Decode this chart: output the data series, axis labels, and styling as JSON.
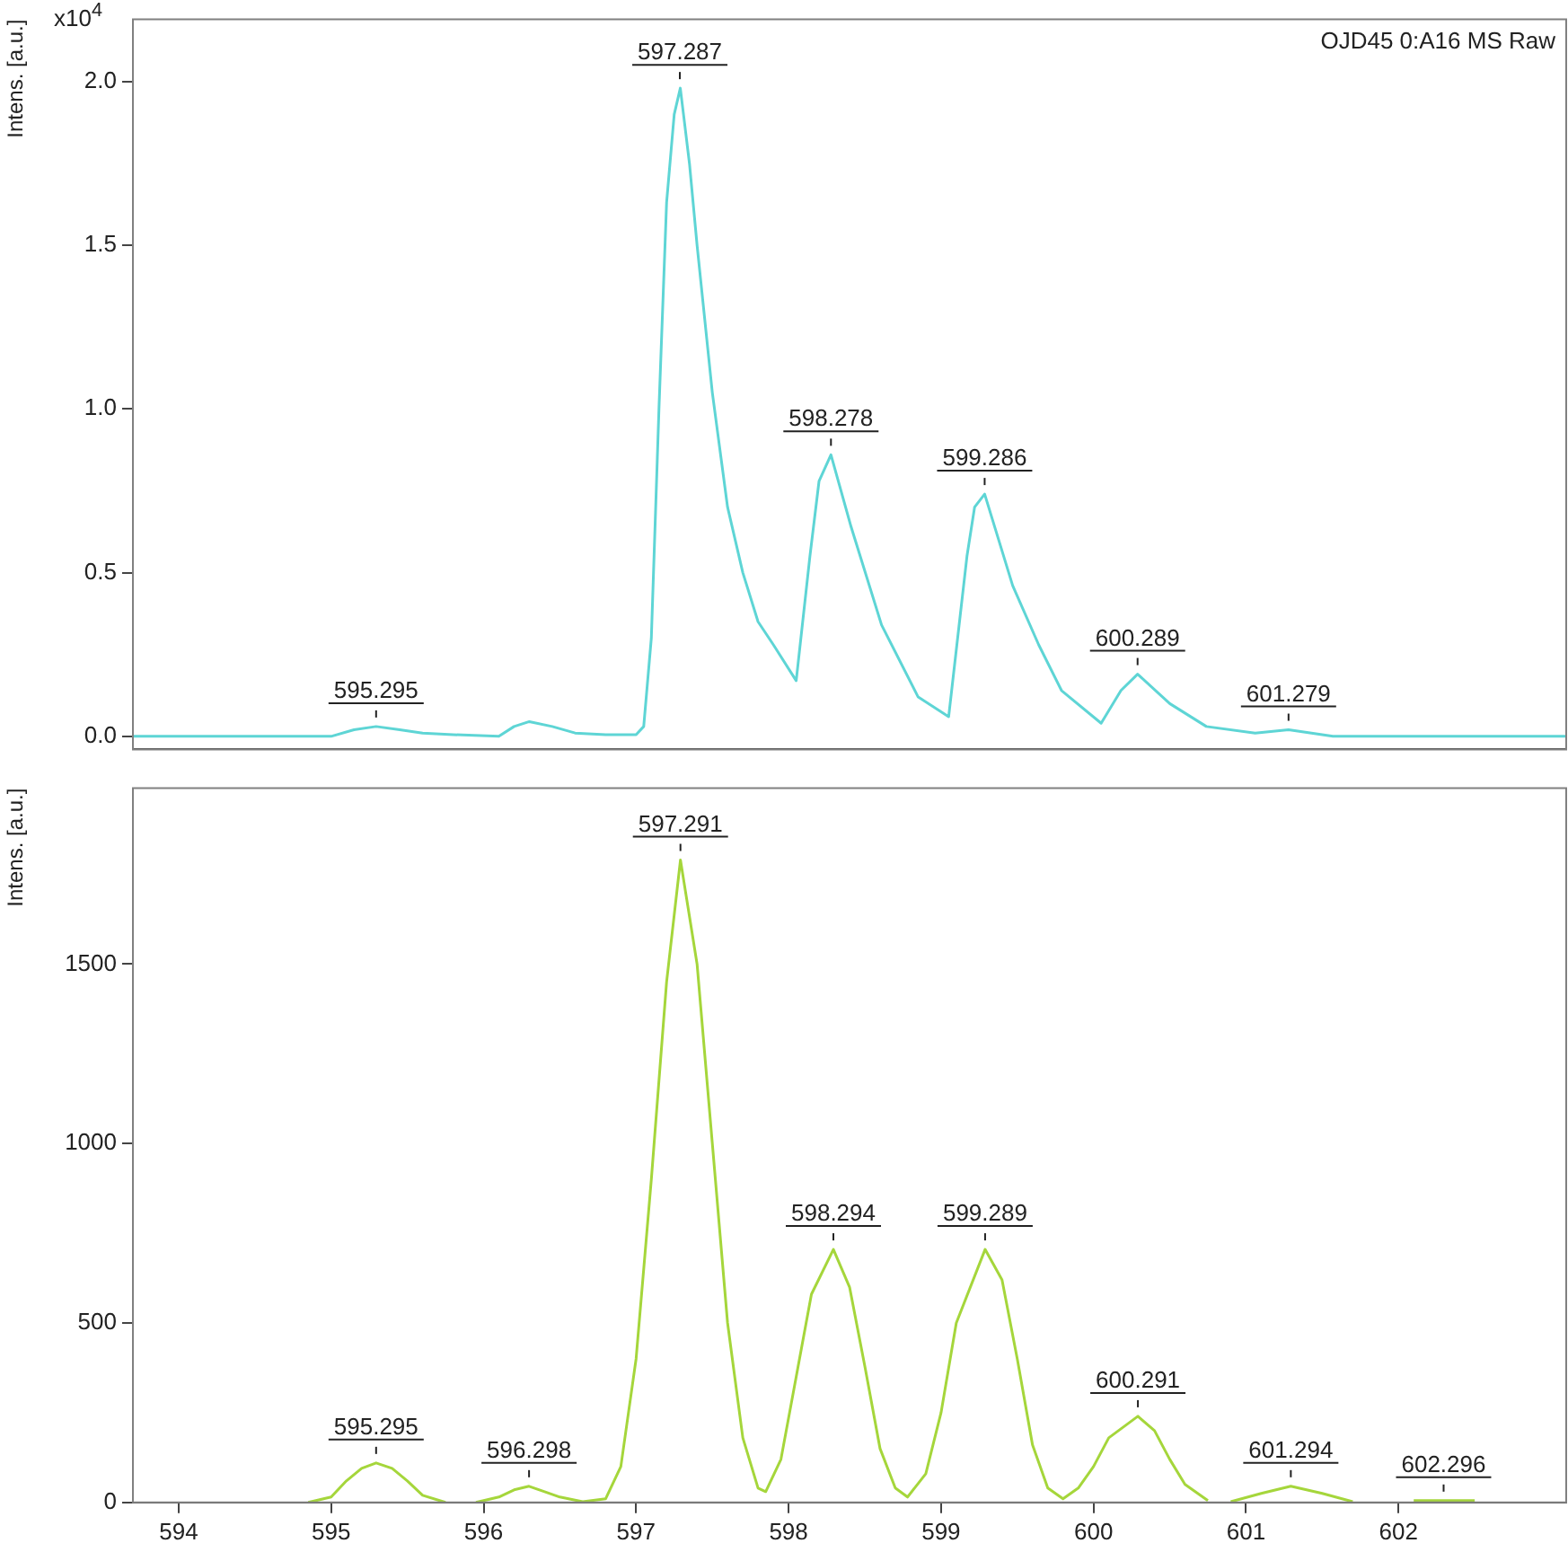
{
  "chart_data": [
    {
      "type": "line",
      "ylabel": "Intens. [a.u.]",
      "xlim": [
        593.7,
        603.1
      ],
      "ylim": [
        -0.04,
        2.19
      ],
      "yticks": [
        {
          "value": 0,
          "label": "0.0"
        },
        {
          "value": 0.5,
          "label": "0.5"
        },
        {
          "value": 1,
          "label": "1.0"
        },
        {
          "value": 1.5,
          "label": "1.5"
        },
        {
          "value": 2,
          "label": "2.0"
        }
      ],
      "tick_labels": "y",
      "grid": false,
      "legend": false,
      "marker": "none",
      "series": [
        {
          "color": "#5ed5d5",
          "x": [
            593.7,
            595.0,
            595.15,
            595.295,
            595.45,
            595.6,
            595.8,
            596.1,
            596.2,
            596.3,
            596.45,
            596.6,
            596.8,
            597.0,
            597.05,
            597.1,
            597.15,
            597.2,
            597.25,
            597.29,
            597.35,
            597.4,
            597.5,
            597.6,
            597.7,
            597.8,
            597.9,
            598.05,
            598.14,
            598.2,
            598.278,
            598.41,
            598.61,
            598.85,
            599.05,
            599.17,
            599.22,
            599.286,
            599.47,
            599.64,
            599.79,
            600.05,
            600.18,
            600.289,
            600.5,
            600.74,
            601.06,
            601.279,
            601.57,
            603.1
          ],
          "values": [
            0,
            0,
            0.02,
            0.03,
            0.02,
            0.01,
            0.005,
            0,
            0.03,
            0.045,
            0.03,
            0.01,
            0.005,
            0.005,
            0.03,
            0.3,
            1.0,
            1.63,
            1.9,
            1.98,
            1.75,
            1.5,
            1.05,
            0.7,
            0.5,
            0.35,
            0.28,
            0.17,
            0.55,
            0.78,
            0.86,
            0.64,
            0.34,
            0.12,
            0.06,
            0.55,
            0.7,
            0.74,
            0.46,
            0.28,
            0.14,
            0.04,
            0.14,
            0.19,
            0.1,
            0.03,
            0.01,
            0.02,
            0,
            0
          ]
        }
      ],
      "annotations": [
        "x10$^{4}$",
        "OJD45 0:A16 MS Raw",
        {
          "text": "595.295",
          "x": 595.295,
          "y": 0.03
        },
        {
          "text": "597.287",
          "x": 597.287,
          "y": 1.98
        },
        {
          "text": "598.278",
          "x": 598.278,
          "y": 0.86
        },
        {
          "text": "599.286",
          "x": 599.286,
          "y": 0.74
        },
        {
          "text": "600.289",
          "x": 600.289,
          "y": 0.19
        },
        {
          "text": "601.279",
          "x": 601.279,
          "y": 0.02
        }
      ]
    },
    {
      "type": "line",
      "ylabel": "Intens. [a.u.]",
      "xlim": [
        593.7,
        603.1
      ],
      "ylim": [
        0,
        1990
      ],
      "xticks": [
        594,
        595,
        596,
        597,
        598,
        599,
        600,
        601,
        602
      ],
      "yticks": [
        0,
        500,
        1000,
        1500
      ],
      "grid": false,
      "legend": false,
      "marker": "none",
      "series": [
        {
          "color": "#a5d63b",
          "x": [
            594.85,
            595.0,
            595.1,
            595.2,
            595.295,
            595.4,
            595.5,
            595.6,
            595.75,
            595.85,
            595.95,
            596.1,
            596.2,
            596.298,
            596.4,
            596.5,
            596.65,
            596.8,
            596.9,
            597.0,
            597.1,
            597.2,
            597.291,
            597.4,
            597.5,
            597.6,
            597.7,
            597.8,
            597.85,
            597.95,
            598.05,
            598.15,
            598.294,
            598.4,
            598.5,
            598.6,
            598.7,
            598.78,
            598.9,
            599.0,
            599.1,
            599.289,
            599.4,
            599.5,
            599.6,
            599.7,
            599.8,
            599.9,
            600.0,
            600.1,
            600.291,
            600.4,
            600.5,
            600.6,
            600.75,
            600.82,
            600.9,
            601.1,
            601.294,
            601.5,
            601.7,
            601.9,
            602.1,
            602.5
          ],
          "values": [
            0,
            15,
            60,
            95,
            110,
            95,
            60,
            20,
            0,
            null,
            0,
            15,
            35,
            45,
            30,
            15,
            2,
            10,
            100,
            400,
            900,
            1450,
            1790,
            1500,
            1000,
            500,
            180,
            40,
            30,
            120,
            350,
            580,
            705,
            600,
            380,
            150,
            40,
            15,
            80,
            250,
            500,
            705,
            620,
            400,
            160,
            40,
            10,
            40,
            100,
            180,
            240,
            200,
            120,
            50,
            5,
            null,
            2,
            25,
            45,
            25,
            2,
            null,
            5,
            5
          ]
        }
      ],
      "annotations": [
        {
          "text": "595.295",
          "x": 595.295,
          "y": 110
        },
        {
          "text": "596.298",
          "x": 596.298,
          "y": 45
        },
        {
          "text": "597.291",
          "x": 597.291,
          "y": 1790
        },
        {
          "text": "598.294",
          "x": 598.294,
          "y": 705
        },
        {
          "text": "599.289",
          "x": 599.289,
          "y": 705
        },
        {
          "text": "600.291",
          "x": 600.291,
          "y": 240
        },
        {
          "text": "601.294",
          "x": 601.294,
          "y": 45
        },
        {
          "text": "602.296",
          "x": 602.296,
          "y": 5
        }
      ]
    }
  ]
}
